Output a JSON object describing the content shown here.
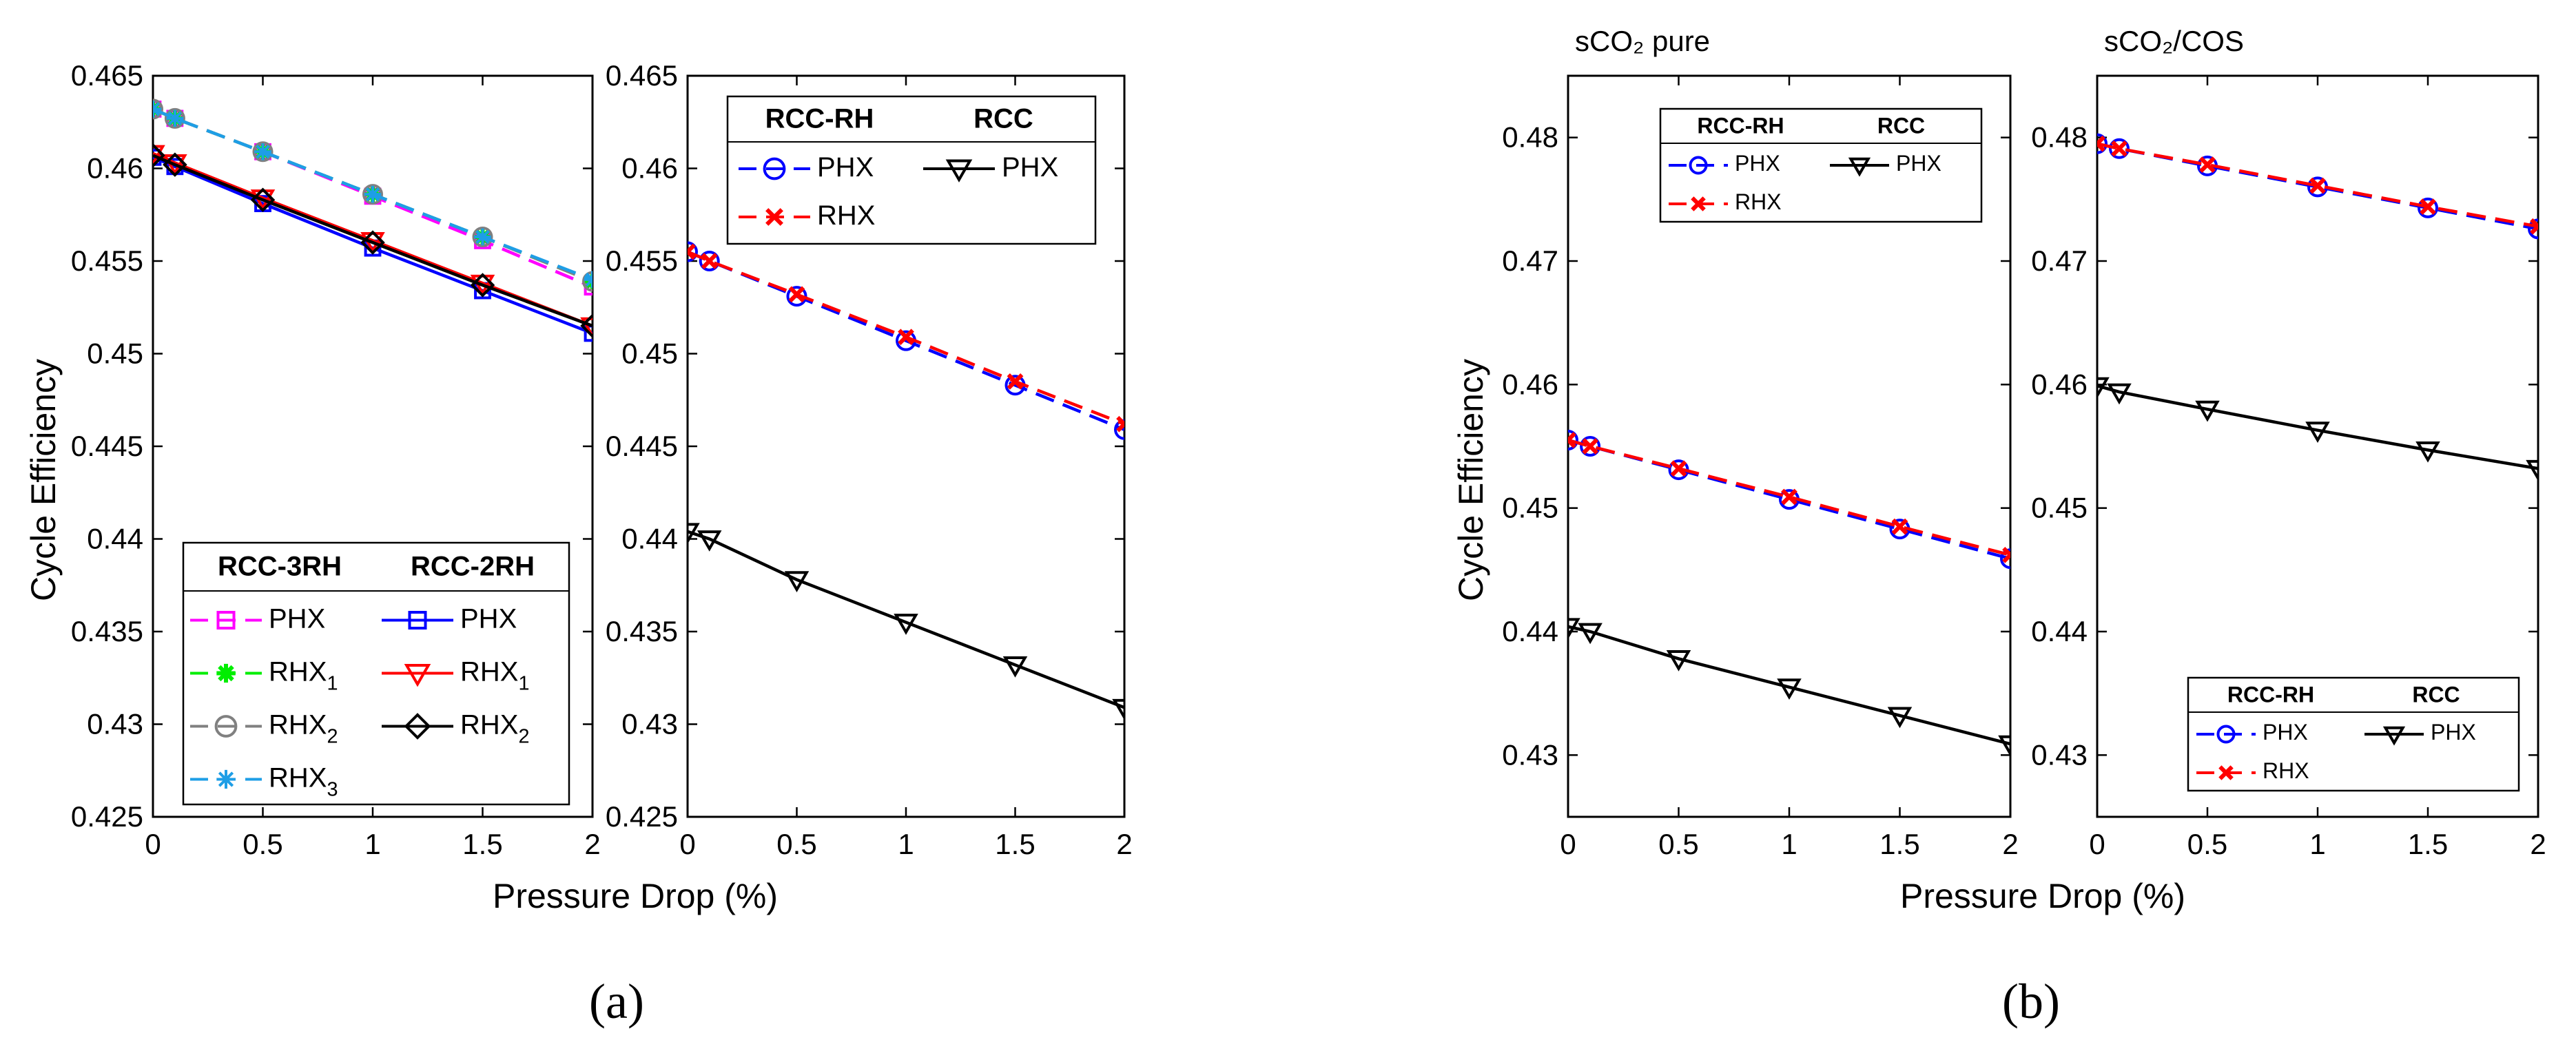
{
  "figure": {
    "sublabels": [
      "(a)",
      "(b)"
    ],
    "xlabel_a": "Pressure Drop (%)",
    "xlabel_b": "Pressure Drop  (%)",
    "ylabel": "Cycle Efficiency"
  },
  "chart_data": [
    {
      "id": "a-left",
      "type": "line",
      "title": "",
      "ylabel": "Cycle Efficiency",
      "xlim": [
        0,
        2
      ],
      "ylim": [
        0.425,
        0.465
      ],
      "xticks": [
        "0",
        "0.5",
        "1",
        "1.5",
        "2"
      ],
      "yticks": [
        "0.425",
        "0.43",
        "0.435",
        "0.44",
        "0.445",
        "0.45",
        "0.455",
        "0.46",
        "0.465"
      ],
      "grid": false,
      "x": [
        0,
        0.1,
        0.5,
        1,
        1.5,
        2
      ],
      "series": [
        {
          "name": "PHX",
          "group": "RCC-3RH",
          "color": "#ff00ff",
          "dash": true,
          "marker": "square",
          "values": [
            0.4632,
            0.4627,
            0.4609,
            0.4585,
            0.4561,
            0.4536
          ]
        },
        {
          "name": "RHX",
          "sub": "1",
          "group": "RCC-3RH",
          "color": "#00ee00",
          "dash": true,
          "marker": "star",
          "values": [
            0.4632,
            0.4627,
            0.4609,
            0.4586,
            0.4563,
            0.4539
          ]
        },
        {
          "name": "RHX",
          "sub": "2",
          "group": "RCC-3RH",
          "color": "#808080",
          "dash": true,
          "marker": "circle",
          "values": [
            0.4632,
            0.4627,
            0.4609,
            0.4586,
            0.4563,
            0.4539
          ]
        },
        {
          "name": "RHX",
          "sub": "3",
          "group": "RCC-3RH",
          "color": "#1e9ee6",
          "dash": true,
          "marker": "asterisk",
          "values": [
            0.4632,
            0.4627,
            0.4609,
            0.4586,
            0.4563,
            0.454
          ]
        },
        {
          "name": "PHX",
          "group": "RCC-2RH",
          "color": "#0000ff",
          "dash": false,
          "marker": "square",
          "values": [
            0.4606,
            0.4601,
            0.4581,
            0.4557,
            0.4534,
            0.4511
          ]
        },
        {
          "name": "RHX",
          "sub": "1",
          "group": "RCC-2RH",
          "color": "#ff0000",
          "dash": false,
          "marker": "triangle-down",
          "values": [
            0.4608,
            0.4603,
            0.4584,
            0.4561,
            0.4538,
            0.4515
          ]
        },
        {
          "name": "RHX",
          "sub": "2",
          "group": "RCC-2RH",
          "color": "#000000",
          "dash": false,
          "marker": "diamond",
          "values": [
            0.4607,
            0.4602,
            0.4583,
            0.456,
            0.4537,
            0.4515
          ]
        }
      ],
      "legend": {
        "placement": "bottom",
        "headers": [
          "RCC-3RH",
          "RCC-2RH"
        ]
      }
    },
    {
      "id": "a-right",
      "type": "line",
      "title": "",
      "xlim": [
        0,
        2
      ],
      "ylim": [
        0.425,
        0.465
      ],
      "xticks": [
        "0",
        "0.5",
        "1",
        "1.5",
        "2"
      ],
      "yticks": [
        "0.425",
        "0.43",
        "0.435",
        "0.44",
        "0.445",
        "0.45",
        "0.455",
        "0.46",
        "0.465"
      ],
      "grid": false,
      "x": [
        0,
        0.1,
        0.5,
        1,
        1.5,
        2
      ],
      "series": [
        {
          "name": "PHX",
          "group": "RCC-RH",
          "color": "#0000ff",
          "dash": true,
          "marker": "circle",
          "values": [
            0.4555,
            0.455,
            0.4531,
            0.4507,
            0.4483,
            0.4459
          ]
        },
        {
          "name": "RHX",
          "group": "RCC-RH",
          "color": "#ff0000",
          "dash": true,
          "marker": "x",
          "values": [
            0.4555,
            0.455,
            0.4532,
            0.4509,
            0.4485,
            0.4462
          ]
        },
        {
          "name": "PHX",
          "group": "RCC",
          "color": "#000000",
          "dash": false,
          "marker": "triangle-down",
          "values": [
            0.4404,
            0.44,
            0.4378,
            0.4355,
            0.4332,
            0.4309
          ]
        }
      ],
      "legend": {
        "placement": "top-right",
        "headers": [
          "RCC-RH",
          "RCC"
        ]
      }
    },
    {
      "id": "b-left",
      "type": "line",
      "title": "sCO₂ pure",
      "xlim": [
        0,
        2
      ],
      "ylim": [
        0.425,
        0.485
      ],
      "xticks": [
        "0",
        "0.5",
        "1",
        "1.5",
        "2"
      ],
      "yticks": [
        "0.43",
        "0.44",
        "0.45",
        "0.46",
        "0.47",
        "0.48"
      ],
      "grid": false,
      "x": [
        0,
        0.1,
        0.5,
        1,
        1.5,
        2
      ],
      "series": [
        {
          "name": "PHX",
          "group": "RCC-RH",
          "color": "#0000ff",
          "dash": true,
          "marker": "circle",
          "values": [
            0.4555,
            0.455,
            0.4531,
            0.4507,
            0.4483,
            0.4459
          ]
        },
        {
          "name": "RHX",
          "group": "RCC-RH",
          "color": "#ff0000",
          "dash": true,
          "marker": "x",
          "values": [
            0.4555,
            0.455,
            0.4532,
            0.4509,
            0.4485,
            0.4462
          ]
        },
        {
          "name": "PHX",
          "group": "RCC",
          "color": "#000000",
          "dash": false,
          "marker": "triangle-down",
          "values": [
            0.4404,
            0.44,
            0.4378,
            0.4355,
            0.4332,
            0.4309
          ]
        }
      ],
      "legend": {
        "placement": "top-left",
        "headers": [
          "RCC-RH",
          "RCC"
        ]
      }
    },
    {
      "id": "b-right",
      "type": "line",
      "title": "sCO₂/COS",
      "xlim": [
        0,
        2
      ],
      "ylim": [
        0.425,
        0.485
      ],
      "xticks": [
        "0",
        "0.5",
        "1",
        "1.5",
        "2"
      ],
      "yticks": [
        "0.43",
        "0.44",
        "0.45",
        "0.46",
        "0.47",
        "0.48"
      ],
      "grid": false,
      "x": [
        0,
        0.1,
        0.5,
        1,
        1.5,
        2
      ],
      "series": [
        {
          "name": "PHX",
          "group": "RCC-RH",
          "color": "#0000ff",
          "dash": true,
          "marker": "circle",
          "values": [
            0.4795,
            0.4791,
            0.4777,
            0.476,
            0.4743,
            0.4726
          ]
        },
        {
          "name": "RHX",
          "group": "RCC-RH",
          "color": "#ff0000",
          "dash": true,
          "marker": "x",
          "values": [
            0.4795,
            0.4791,
            0.4778,
            0.4761,
            0.4744,
            0.4728
          ]
        },
        {
          "name": "PHX",
          "group": "RCC",
          "color": "#000000",
          "dash": false,
          "marker": "triangle-down",
          "values": [
            0.4599,
            0.4594,
            0.458,
            0.4563,
            0.4547,
            0.4532
          ]
        }
      ],
      "legend": {
        "placement": "bottom-right",
        "headers": [
          "RCC-RH",
          "RCC"
        ]
      }
    }
  ]
}
